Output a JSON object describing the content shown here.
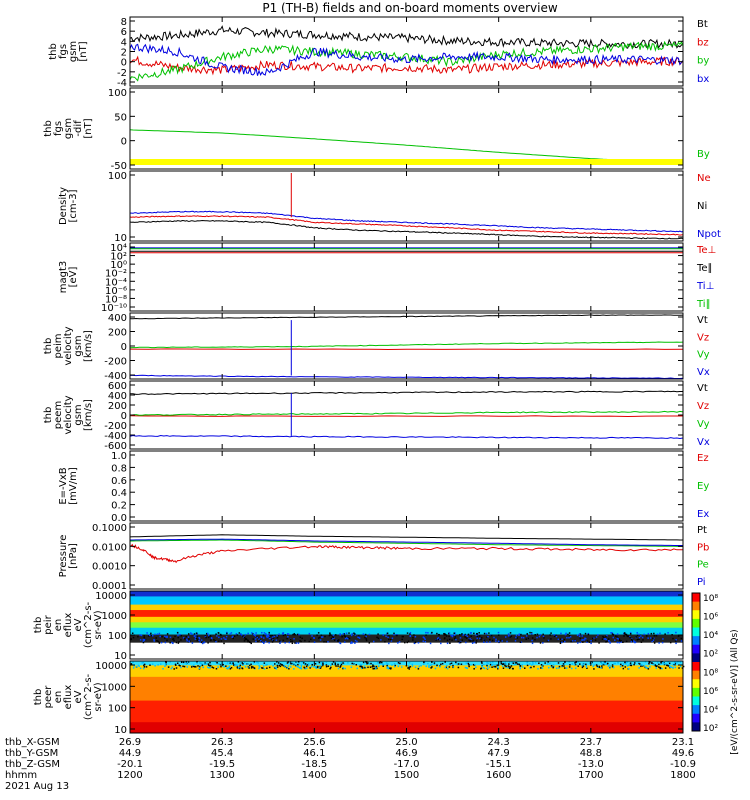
{
  "title": "P1 (TH-B) fields and on-board moments overview",
  "colorbar": {
    "ticks": [
      "10⁸",
      "10⁶",
      "10⁴",
      "10²",
      "10⁸",
      "10⁶",
      "10⁴",
      "10²"
    ],
    "unit": "[eV/(cm^2-s-sr-eV)] (All Qs)"
  },
  "chart_data": [
    {
      "type": "line",
      "ylabel": [
        "thb",
        "fgs",
        "gsm",
        "[nT]"
      ],
      "yticks": [
        "8",
        "6",
        "4",
        "2",
        "0",
        "-2",
        "-4"
      ],
      "ylim": [
        -4.5,
        8.5
      ],
      "series": [
        {
          "name": "Bt",
          "color": "#000000",
          "x": [
            1200,
            1230,
            1300,
            1330,
            1400,
            1430,
            1500,
            1530,
            1600,
            1630,
            1700,
            1730,
            1800
          ],
          "values": [
            4.5,
            5.0,
            6.0,
            5.5,
            5.2,
            4.8,
            4.5,
            4.0,
            3.8,
            3.6,
            3.5,
            3.4,
            3.5
          ]
        },
        {
          "name": "bz",
          "color": "#e00000",
          "x": [
            1200,
            1230,
            1300,
            1330,
            1400,
            1430,
            1500,
            1530,
            1600,
            1630,
            1700,
            1730,
            1800
          ],
          "values": [
            0.5,
            -1.0,
            -1.5,
            -0.5,
            -0.8,
            -1.2,
            -1.0,
            -1.5,
            -0.8,
            -0.5,
            -0.3,
            0.0,
            0.2
          ]
        },
        {
          "name": "by",
          "color": "#00c000",
          "x": [
            1200,
            1230,
            1300,
            1330,
            1400,
            1430,
            1500,
            1530,
            1600,
            1630,
            1700,
            1730,
            1800
          ],
          "values": [
            -3.0,
            -1.5,
            1.0,
            2.5,
            2.0,
            1.5,
            1.0,
            0.0,
            1.5,
            2.0,
            2.5,
            3.0,
            3.0
          ]
        },
        {
          "name": "bx",
          "color": "#0000e0",
          "x": [
            1200,
            1230,
            1300,
            1330,
            1400,
            1430,
            1500,
            1530,
            1600,
            1630,
            1700,
            1730,
            1800
          ],
          "values": [
            3.0,
            2.0,
            -1.0,
            -2.0,
            2.0,
            1.0,
            0.5,
            1.0,
            1.0,
            0.5,
            0.5,
            0.5,
            0.3
          ]
        }
      ]
    },
    {
      "type": "line",
      "ylabel": [
        "thb",
        "fgs",
        "gsm",
        "-dif",
        "[nT]"
      ],
      "yticks": [
        "100",
        "50",
        "0",
        "-50"
      ],
      "ylim": [
        -75,
        105
      ],
      "series": [
        {
          "name": "By",
          "color": "#00c000",
          "x": [
            1200,
            1300,
            1400,
            1500,
            1600,
            1700,
            1800
          ],
          "values": [
            12,
            5,
            -8,
            -22,
            -38,
            -52,
            -62
          ]
        }
      ],
      "annotations": [
        "yellow band at bottom of panel"
      ]
    },
    {
      "type": "line",
      "ylabel": [
        "Density",
        "[cm-3]"
      ],
      "yticks": [
        "100",
        "10"
      ],
      "yscale": "log",
      "ylim": [
        3,
        280
      ],
      "series": [
        {
          "name": "Ne",
          "color": "#e00000",
          "x": [
            1200,
            1230,
            1300,
            1330,
            1400,
            1430,
            1500,
            1530,
            1600,
            1630,
            1700,
            1730,
            1800
          ],
          "values": [
            14,
            15,
            15,
            14,
            10,
            9,
            8,
            7,
            6,
            5.5,
            5,
            4.8,
            4.5
          ]
        },
        {
          "name": "Ni",
          "color": "#000000",
          "x": [
            1200,
            1230,
            1300,
            1330,
            1400,
            1430,
            1500,
            1530,
            1600,
            1630,
            1700,
            1730,
            1800
          ],
          "values": [
            10,
            11,
            11,
            10,
            7,
            6,
            5.5,
            5,
            4.5,
            4,
            3.8,
            3.6,
            3.5
          ]
        },
        {
          "name": "Npot",
          "color": "#0000e0",
          "x": [
            1200,
            1230,
            1300,
            1330,
            1400,
            1430,
            1500,
            1530,
            1600,
            1630,
            1700,
            1730,
            1800
          ],
          "values": [
            18,
            20,
            20,
            18,
            13,
            11,
            10,
            9,
            8,
            7,
            6.5,
            6,
            5.5
          ]
        }
      ],
      "annotations": [
        "spike to ~200 near 13:45"
      ]
    },
    {
      "type": "line",
      "ylabel": [
        "magt3",
        "[eV]"
      ],
      "yticks": [
        "10⁴",
        "10²",
        "10⁰",
        "10⁻²",
        "10⁻⁴",
        "10⁻⁶",
        "10⁻⁸",
        "10⁻¹⁰"
      ],
      "ylim": [
        -10,
        4
      ],
      "yscale": "log",
      "series": [
        {
          "name": "Te⊥",
          "color": "#e00000",
          "x": [
            1200,
            1800
          ],
          "values": [
            2.0,
            2.0
          ]
        },
        {
          "name": "Te∥",
          "color": "#000000",
          "x": [
            1200,
            1800
          ],
          "values": [
            2.3,
            2.3
          ]
        },
        {
          "name": "Ti⊥",
          "color": "#0000e0",
          "x": [
            1200,
            1800
          ],
          "values": [
            3.0,
            3.0
          ]
        },
        {
          "name": "Ti∥",
          "color": "#00c000",
          "x": [
            1200,
            1800
          ],
          "values": [
            2.8,
            2.8
          ]
        }
      ]
    },
    {
      "type": "line",
      "ylabel": [
        "thb",
        "peim",
        "velocity",
        "gsm",
        "[km/s]"
      ],
      "yticks": [
        "400",
        "200",
        "0",
        "-200",
        "-400"
      ],
      "ylim": [
        -450,
        480
      ],
      "series": [
        {
          "name": "Vt",
          "color": "#000000",
          "x": [
            1200,
            1300,
            1400,
            1500,
            1600,
            1700,
            1800
          ],
          "values": [
            400,
            410,
            420,
            430,
            440,
            450,
            450
          ]
        },
        {
          "name": "Vz",
          "color": "#e00000",
          "x": [
            1200,
            1800
          ],
          "values": [
            -30,
            -30
          ]
        },
        {
          "name": "Vy",
          "color": "#00c000",
          "x": [
            1200,
            1300,
            1400,
            1500,
            1600,
            1700,
            1800
          ],
          "values": [
            -5,
            0,
            10,
            30,
            50,
            60,
            70
          ]
        },
        {
          "name": "Vx",
          "color": "#0000e0",
          "x": [
            1200,
            1300,
            1400,
            1500,
            1600,
            1700,
            1800
          ],
          "values": [
            -400,
            -410,
            -420,
            -425,
            -430,
            -435,
            -440
          ]
        }
      ]
    },
    {
      "type": "line",
      "ylabel": [
        "thb",
        "peem",
        "velocity",
        "gsm",
        "[km/s]"
      ],
      "yticks": [
        "600",
        "400",
        "200",
        "0",
        "-200",
        "-400",
        "-600"
      ],
      "ylim": [
        -650,
        650
      ],
      "series": [
        {
          "name": "Vt",
          "color": "#000000",
          "x": [
            1200,
            1300,
            1400,
            1500,
            1600,
            1700,
            1800
          ],
          "values": [
            400,
            410,
            420,
            430,
            440,
            445,
            450
          ]
        },
        {
          "name": "Vz",
          "color": "#e00000",
          "x": [
            1200,
            1800
          ],
          "values": [
            -20,
            -20
          ]
        },
        {
          "name": "Vy",
          "color": "#00c000",
          "x": [
            1200,
            1300,
            1400,
            1500,
            1600,
            1700,
            1800
          ],
          "values": [
            0,
            10,
            20,
            30,
            50,
            55,
            60
          ]
        },
        {
          "name": "Vx",
          "color": "#0000e0",
          "x": [
            1200,
            1300,
            1400,
            1500,
            1600,
            1700,
            1800
          ],
          "values": [
            -400,
            -405,
            -415,
            -420,
            -430,
            -435,
            -440
          ]
        }
      ]
    },
    {
      "type": "line",
      "ylabel": [
        "E=-VxB",
        "[mV/m]"
      ],
      "yticks": [
        "1.0",
        "0.8",
        "0.6",
        "0.4",
        "0.2",
        "0.0"
      ],
      "ylim": [
        0,
        1.05
      ],
      "series": [
        {
          "name": "Ez",
          "color": "#e00000",
          "x": [],
          "values": []
        },
        {
          "name": "Ey",
          "color": "#00c000",
          "x": [],
          "values": []
        },
        {
          "name": "Ex",
          "color": "#0000e0",
          "x": [],
          "values": []
        }
      ]
    },
    {
      "type": "line",
      "ylabel": [
        "Pressure",
        "[nPa]"
      ],
      "yticks": [
        "0.1000",
        "0.0100",
        "0.0010",
        "0.0001"
      ],
      "yscale": "log",
      "ylim": [
        -4,
        -0.9
      ],
      "series": [
        {
          "name": "Pt",
          "color": "#000000",
          "x": [
            1200,
            1300,
            1400,
            1500,
            1600,
            1700,
            1800
          ],
          "values": [
            0.028,
            0.035,
            0.03,
            0.027,
            0.024,
            0.022,
            0.02
          ]
        },
        {
          "name": "Pb",
          "color": "#e00000",
          "x": [
            1200,
            1215,
            1230,
            1300,
            1400,
            1430,
            1500,
            1600,
            1700,
            1800
          ],
          "values": [
            0.012,
            0.003,
            0.002,
            0.006,
            0.01,
            0.009,
            0.008,
            0.008,
            0.007,
            0.007
          ]
        },
        {
          "name": "Pe",
          "color": "#00c000",
          "x": [
            1200,
            1300,
            1400,
            1500,
            1600,
            1700,
            1800
          ],
          "values": [
            0.018,
            0.02,
            0.016,
            0.014,
            0.012,
            0.011,
            0.01
          ]
        },
        {
          "name": "Pi",
          "color": "#0000e0",
          "x": [
            1200,
            1300,
            1400,
            1500,
            1600,
            1700,
            1800
          ],
          "values": [
            0.02,
            0.022,
            0.018,
            0.016,
            0.014,
            0.012,
            0.011
          ]
        }
      ]
    },
    {
      "type": "heatmap",
      "ylabel": [
        "thb",
        "peir",
        "en",
        "eflux",
        "eV",
        "(cm^2-s-",
        "sr-eV)"
      ],
      "yticks": [
        "10000",
        "1000",
        "100",
        "10"
      ]
    },
    {
      "type": "heatmap",
      "ylabel": [
        "thb",
        "peer",
        "en",
        "eflux",
        "eV",
        "(cm^2-s-",
        "sr-eV)"
      ],
      "yticks": [
        "10000",
        "1000",
        "100",
        "10"
      ]
    }
  ],
  "x_axis": {
    "rows": [
      {
        "label": "thb_X-GSM",
        "values": [
          "26.9",
          "26.3",
          "25.6",
          "25.0",
          "24.3",
          "23.7",
          "23.1"
        ]
      },
      {
        "label": "thb_Y-GSM",
        "values": [
          "44.9",
          "45.4",
          "46.1",
          "46.9",
          "47.9",
          "48.8",
          "49.6"
        ]
      },
      {
        "label": "thb_Z-GSM",
        "values": [
          "-20.1",
          "-19.5",
          "-18.5",
          "-17.0",
          "-15.1",
          "-13.0",
          "-10.9"
        ]
      },
      {
        "label": "hhmm",
        "values": [
          "1200",
          "1300",
          "1400",
          "1500",
          "1600",
          "1700",
          "1800"
        ]
      }
    ],
    "date": "2021 Aug 13"
  }
}
